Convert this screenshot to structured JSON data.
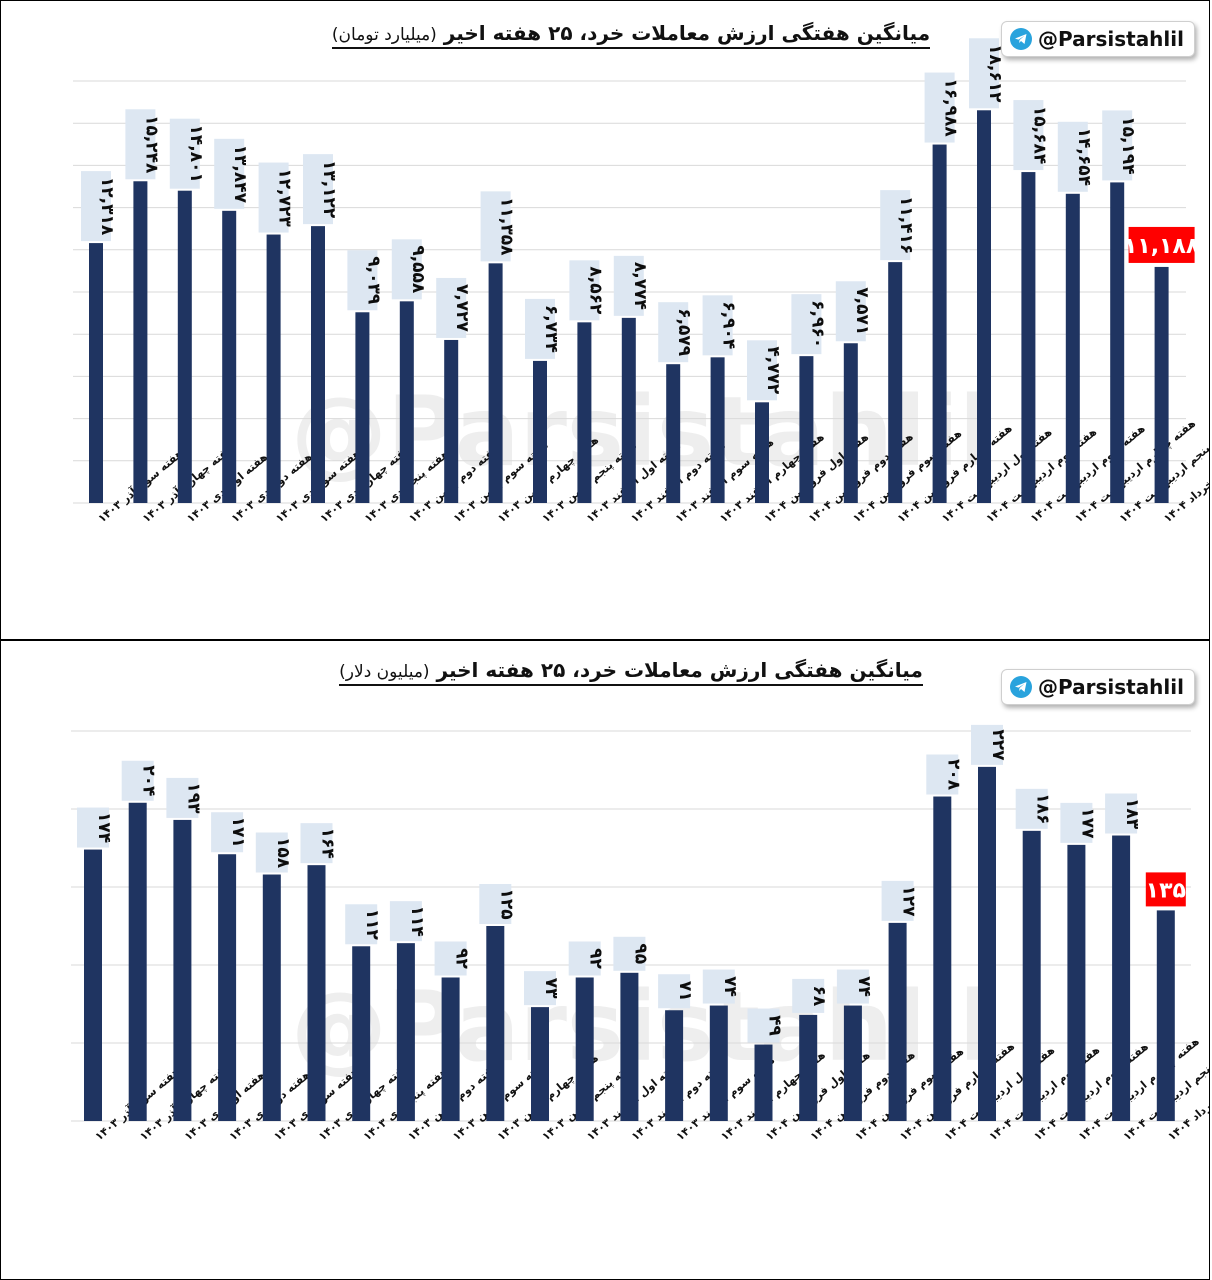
{
  "brand": {
    "handle": "@Parsistahlil",
    "icon": "telegram-icon",
    "icon_color": "#29a3dd"
  },
  "watermark": "@Parsistahlil",
  "colors": {
    "bar": "#1f3461",
    "label_bg": "#dde7f2",
    "highlight": "#ff0000"
  },
  "chart_data": [
    {
      "type": "bar",
      "title": "میانگین هفتگی ارزش معاملات خرد، ۲۵ هفته اخیر",
      "subtitle": "(میلیارد تومان)",
      "categories": [
        "هفته سوم آذر ۱۴۰۳",
        "هفته چهارم آذر ۱۴۰۳",
        "هفته اول دی ۱۴۰۳",
        "هفته دوم دی ۱۴۰۳",
        "هفته سوم دی ۱۴۰۳",
        "هفته چهارم دی ۱۴۰۳",
        "هفته پنجم دی ۱۴۰۳",
        "هفته دوم بهمن ۱۴۰۳",
        "هفته سوم بهمن ۱۴۰۳",
        "هفته چهارم بهمن ۱۴۰۳",
        "هفته پنجم بهمن ۱۴۰۳",
        "هفته اول اسفند ۱۴۰۳",
        "هفته دوم اسفند ۱۴۰۳",
        "هفته سوم اسفند ۱۴۰۳",
        "هفته چهارم اسفند ۱۴۰۳",
        "هفته اول فروردین ۱۴۰۴",
        "هفته دوم فروردین ۱۴۰۴",
        "هفته سوم فروردین ۱۴۰۴",
        "هفته چهارم فروردین ۱۴۰۴",
        "هفته اول اردیبهشت ۱۴۰۴",
        "هفته دوم اردیبهشت ۱۴۰۴",
        "هفته سوم اردیبهشت ۱۴۰۴",
        "هفته چهارم اردیبهشت ۱۴۰۴",
        "هفته پنجم اردیبهشت ۱۴۰۴",
        "هفته اول خرداد ۱۴۰۴"
      ],
      "values": [
        12318,
        15248,
        14801,
        13847,
        12723,
        13122,
        9039,
        9558,
        7727,
        11358,
        6734,
        8562,
        8774,
        6579,
        6904,
        4772,
        6960,
        7571,
        11416,
        16988,
        18612,
        15684,
        14654,
        15194,
        11188
      ],
      "value_labels": [
        "۱۲,۳۱۸",
        "۱۵,۲۴۸",
        "۱۴,۸۰۱",
        "۱۳,۸۴۷",
        "۱۲,۷۲۳",
        "۱۳,۱۲۲",
        "۹,۰۳۹",
        "۹,۵۵۸",
        "۷,۷۲۷",
        "۱۱,۳۵۸",
        "۶,۷۳۴",
        "۸,۵۶۲",
        "۸,۷۷۴",
        "۶,۵۷۹",
        "۶,۹۰۴",
        "۴,۷۷۲",
        "۶,۹۶۰",
        "۷,۵۷۱",
        "۱۱,۴۱۶",
        "۱۶,۹۸۸",
        "۱۸,۶۱۲",
        "۱۵,۶۸۴",
        "۱۴,۶۵۴",
        "۱۵,۱۹۴",
        "۱۱,۱۸۸"
      ],
      "highlight_index": 24,
      "ylim": [
        0,
        20000
      ],
      "grid": true,
      "gridline_count": 10
    },
    {
      "type": "bar",
      "title": "میانگین هفتگی ارزش معاملات خرد، ۲۵ هفته اخیر",
      "subtitle": "(میلیون دلار)",
      "categories": [
        "هفته سوم آذر ۱۴۰۳",
        "هفته چهارم آذر ۱۴۰۳",
        "هفته اول دی ۱۴۰۳",
        "هفته دوم دی ۱۴۰۳",
        "هفته سوم دی ۱۴۰۳",
        "هفته چهارم دی ۱۴۰۳",
        "هفته پنجم دی ۱۴۰۳",
        "هفته دوم بهمن ۱۴۰۳",
        "هفته سوم بهمن ۱۴۰۳",
        "هفته چهارم بهمن ۱۴۰۳",
        "هفته پنجم بهمن ۱۴۰۳",
        "هفته اول اسفند ۱۴۰۳",
        "هفته دوم اسفند ۱۴۰۳",
        "هفته سوم اسفند ۱۴۰۳",
        "هفته چهارم اسفند ۱۴۰۳",
        "هفته اول فروردین ۱۴۰۴",
        "هفته دوم فروردین ۱۴۰۴",
        "هفته سوم فروردین ۱۴۰۴",
        "هفته چهارم فروردین ۱۴۰۴",
        "هفته اول اردیبهشت ۱۴۰۴",
        "هفته دوم اردیبهشت ۱۴۰۴",
        "هفته سوم اردیبهشت ۱۴۰۴",
        "هفته چهارم اردیبهشت ۱۴۰۴",
        "هفته پنجم اردیبهشت ۱۴۰۴",
        "هفته اول خرداد ۱۴۰۴"
      ],
      "values": [
        174,
        204,
        193,
        171,
        158,
        164,
        112,
        114,
        92,
        125,
        73,
        92,
        95,
        71,
        74,
        49,
        68,
        74,
        127,
        208,
        227,
        186,
        177,
        183,
        135
      ],
      "value_labels": [
        "۱۷۴",
        "۲۰۴",
        "۱۹۳",
        "۱۷۱",
        "۱۵۸",
        "۱۶۴",
        "۱۱۲",
        "۱۱۴",
        "۹۲",
        "۱۲۵",
        "۷۳",
        "۹۲",
        "۹۵",
        "۷۱",
        "۷۴",
        "۴۹",
        "۶۸",
        "۷۴",
        "۱۲۷",
        "۲۰۸",
        "۲۲۷",
        "۱۸۶",
        "۱۷۷",
        "۱۸۳",
        "۱۳۵"
      ],
      "highlight_index": 24,
      "ylim": [
        0,
        250
      ],
      "grid": true,
      "gridline_count": 5
    }
  ]
}
